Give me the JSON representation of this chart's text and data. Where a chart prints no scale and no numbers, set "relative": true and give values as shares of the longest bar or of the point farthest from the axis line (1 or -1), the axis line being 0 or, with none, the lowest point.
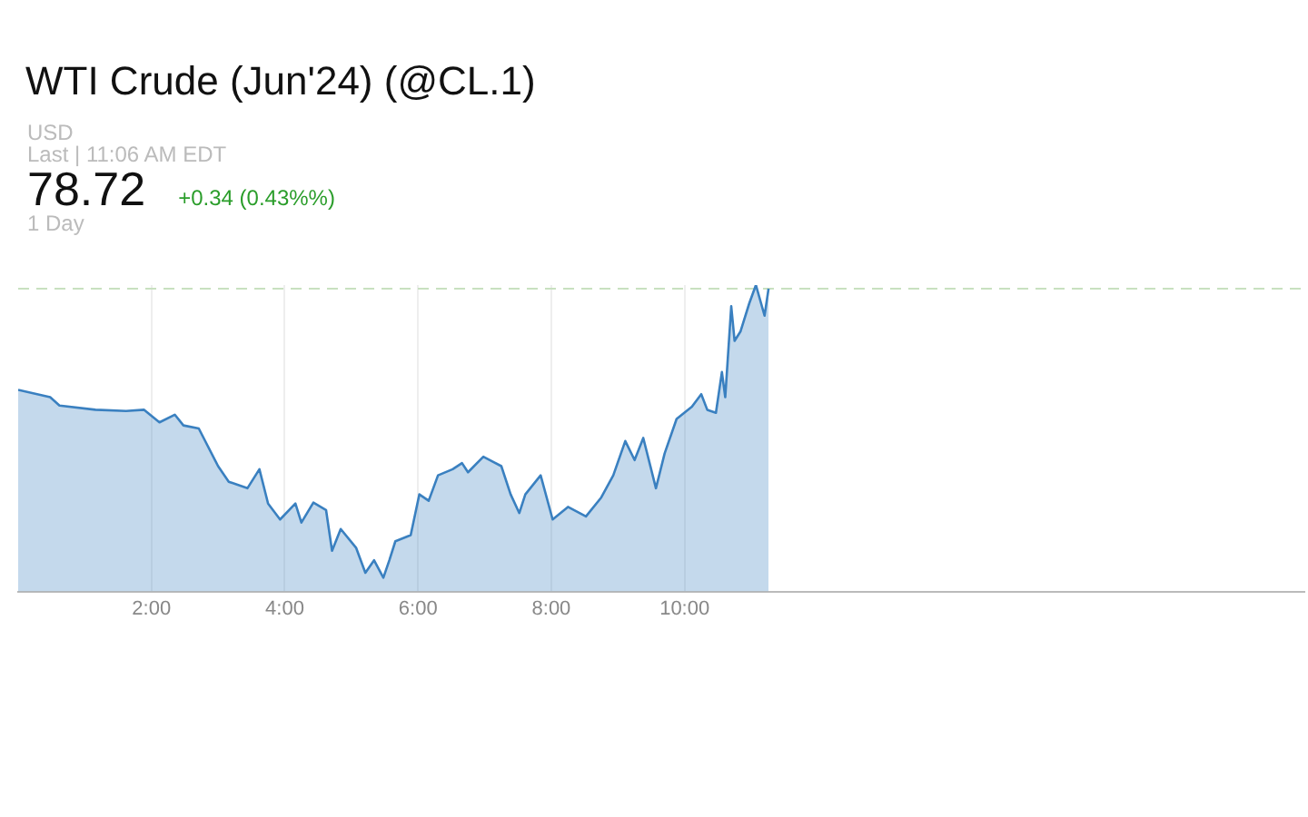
{
  "chart_data": {
    "type": "area",
    "title": "WTI Crude (Jun'24) (@CL.1)",
    "annotations": [
      "USD",
      "Last | 11:06 AM EDT",
      "78.72",
      "+0.34 (0.43%%)",
      "1 Day"
    ],
    "relative": true,
    "xlim": [
      0,
      19.3
    ],
    "xticks": [
      {
        "value": 2,
        "label": "2:00"
      },
      {
        "value": 4,
        "label": "4:00"
      },
      {
        "value": 6,
        "label": "6:00"
      },
      {
        "value": 8,
        "label": "8:00"
      },
      {
        "value": 10,
        "label": "10:00"
      }
    ],
    "grid": "x",
    "line_style": "solid",
    "ref_lines": [
      {
        "axis": "y",
        "value": 0.988,
        "color": "#c8e0c0",
        "line_style": "dashed"
      }
    ],
    "series": [
      {
        "color": "#3a80c0",
        "x": [
          0,
          0.48,
          0.62,
          1.16,
          1.62,
          1.89,
          2.12,
          2.35,
          2.48,
          2.71,
          3.0,
          3.16,
          3.44,
          3.62,
          3.75,
          3.93,
          4.16,
          4.25,
          4.43,
          4.62,
          4.71,
          4.84,
          5.07,
          5.21,
          5.34,
          5.48,
          5.57,
          5.66,
          5.89,
          6.02,
          6.16,
          6.3,
          6.52,
          6.66,
          6.75,
          6.98,
          7.25,
          7.39,
          7.52,
          7.61,
          7.84,
          8.02,
          8.25,
          8.52,
          8.75,
          8.93,
          9.11,
          9.25,
          9.38,
          9.57,
          9.7,
          9.88,
          10.11,
          10.25,
          10.34,
          10.47,
          10.56,
          10.61,
          10.7,
          10.75,
          10.84,
          10.97,
          11.07,
          11.2,
          11.26
        ],
        "values": [
          0.658,
          0.634,
          0.607,
          0.593,
          0.589,
          0.593,
          0.552,
          0.577,
          0.542,
          0.532,
          0.409,
          0.358,
          0.337,
          0.399,
          0.287,
          0.235,
          0.287,
          0.225,
          0.29,
          0.266,
          0.133,
          0.204,
          0.143,
          0.061,
          0.102,
          0.045,
          0.102,
          0.164,
          0.184,
          0.317,
          0.296,
          0.379,
          0.399,
          0.419,
          0.389,
          0.44,
          0.409,
          0.317,
          0.256,
          0.317,
          0.379,
          0.235,
          0.276,
          0.245,
          0.307,
          0.379,
          0.491,
          0.429,
          0.501,
          0.337,
          0.45,
          0.563,
          0.603,
          0.644,
          0.593,
          0.583,
          0.716,
          0.634,
          0.931,
          0.818,
          0.849,
          0.94,
          1.0,
          0.9,
          0.988
        ]
      }
    ]
  }
}
